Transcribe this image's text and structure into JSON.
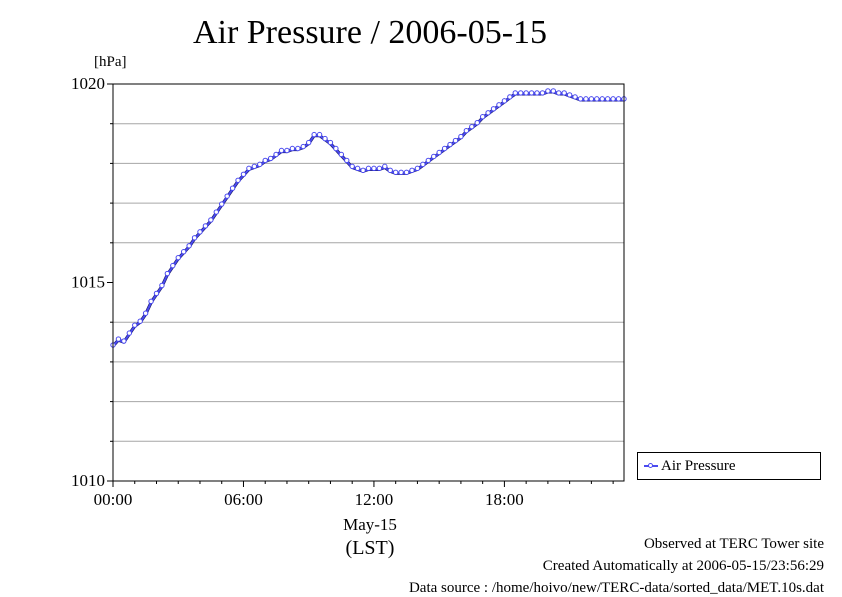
{
  "footer": {
    "observed": "Observed at TERC Tower site",
    "created": "Created Automatically at 2006-05-15/23:56:29",
    "source": "Data source : /home/hoivo/new/TERC-data/sorted_data/MET.10s.dat"
  },
  "colors": {
    "series": "#4a4af0",
    "grid": "#a6a6a6"
  },
  "chart_data": {
    "type": "line",
    "title": "Air Pressure / 2006-05-15",
    "ylabel": "[hPa]",
    "xdate_label": "May-15",
    "xtz_label": "(LST)",
    "ylim": [
      1010,
      1020
    ],
    "xlim": [
      0,
      23.5
    ],
    "grid": true,
    "legend": "right-bottom",
    "yticks": [
      {
        "value": 1010,
        "label": "1010"
      },
      {
        "value": 1015,
        "label": "1015"
      },
      {
        "value": 1020,
        "label": "1020"
      }
    ],
    "ygrid": [
      1011,
      1012,
      1013,
      1014,
      1016,
      1017,
      1018,
      1019
    ],
    "xticks": [
      {
        "value": 0,
        "label": "00:00"
      },
      {
        "value": 6,
        "label": "06:00"
      },
      {
        "value": 12,
        "label": "12:00"
      },
      {
        "value": 18,
        "label": "18:00"
      }
    ],
    "series": [
      {
        "name": "Air Pressure",
        "x": [
          0,
          0.25,
          0.5,
          0.75,
          1.0,
          1.25,
          1.5,
          1.75,
          2.0,
          2.25,
          2.5,
          2.75,
          3.0,
          3.25,
          3.5,
          3.75,
          4.0,
          4.25,
          4.5,
          4.75,
          5.0,
          5.25,
          5.5,
          5.75,
          6.0,
          6.25,
          6.5,
          6.75,
          7.0,
          7.25,
          7.5,
          7.75,
          8.0,
          8.25,
          8.5,
          8.75,
          9.0,
          9.25,
          9.5,
          9.75,
          10.0,
          10.25,
          10.5,
          10.75,
          11.0,
          11.25,
          11.5,
          11.75,
          12.0,
          12.25,
          12.5,
          12.75,
          13.0,
          13.25,
          13.5,
          13.75,
          14.0,
          14.25,
          14.5,
          14.75,
          15.0,
          15.25,
          15.5,
          15.75,
          16.0,
          16.25,
          16.5,
          16.75,
          17.0,
          17.25,
          17.5,
          17.75,
          18.0,
          18.25,
          18.5,
          18.75,
          19.0,
          19.25,
          19.5,
          19.75,
          20.0,
          20.25,
          20.5,
          20.75,
          21.0,
          21.25,
          21.5,
          21.75,
          22.0,
          22.25,
          22.5,
          22.75,
          23.0,
          23.25,
          23.5
        ],
        "values": [
          1013.4,
          1013.55,
          1013.5,
          1013.7,
          1013.9,
          1014.0,
          1014.2,
          1014.5,
          1014.7,
          1014.9,
          1015.2,
          1015.4,
          1015.6,
          1015.75,
          1015.9,
          1016.1,
          1016.25,
          1016.4,
          1016.55,
          1016.75,
          1016.95,
          1017.15,
          1017.35,
          1017.55,
          1017.7,
          1017.85,
          1017.9,
          1017.95,
          1018.05,
          1018.1,
          1018.2,
          1018.3,
          1018.3,
          1018.35,
          1018.35,
          1018.4,
          1018.5,
          1018.7,
          1018.7,
          1018.6,
          1018.5,
          1018.35,
          1018.2,
          1018.05,
          1017.9,
          1017.85,
          1017.8,
          1017.85,
          1017.85,
          1017.85,
          1017.9,
          1017.8,
          1017.75,
          1017.75,
          1017.75,
          1017.8,
          1017.85,
          1017.95,
          1018.05,
          1018.15,
          1018.25,
          1018.35,
          1018.45,
          1018.55,
          1018.65,
          1018.8,
          1018.9,
          1019.0,
          1019.15,
          1019.25,
          1019.35,
          1019.45,
          1019.55,
          1019.65,
          1019.75,
          1019.75,
          1019.75,
          1019.75,
          1019.75,
          1019.75,
          1019.8,
          1019.8,
          1019.75,
          1019.75,
          1019.7,
          1019.65,
          1019.6,
          1019.6,
          1019.6,
          1019.6,
          1019.6,
          1019.6,
          1019.6,
          1019.6,
          1019.6
        ]
      }
    ]
  }
}
